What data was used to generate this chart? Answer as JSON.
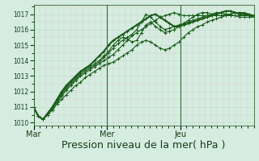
{
  "bg_color": "#d4ede0",
  "line_color": "#1a5c1a",
  "xlabel": "Pression niveau de la mer( hPa )",
  "xlabel_fontsize": 9,
  "yticks": [
    1010,
    1011,
    1012,
    1013,
    1014,
    1015,
    1016,
    1017
  ],
  "ylim": [
    1009.8,
    1017.6
  ],
  "xlim": [
    0,
    72
  ],
  "xtick_positions": [
    0,
    24,
    48
  ],
  "xtick_labels": [
    "Mar",
    "Mer",
    "Jeu"
  ],
  "vline_positions": [
    0,
    24,
    48
  ],
  "series": [
    [
      1011.0,
      1010.4,
      1010.2,
      1010.5,
      1010.8,
      1011.2,
      1011.5,
      1011.8,
      1012.1,
      1012.4,
      1012.6,
      1012.9,
      1013.1,
      1013.3,
      1013.5,
      1013.7,
      1013.8,
      1013.9,
      1014.1,
      1014.3,
      1014.5,
      1014.7,
      1015.0,
      1015.2,
      1015.3,
      1015.2,
      1015.0,
      1014.8,
      1014.7,
      1014.8,
      1015.0,
      1015.2,
      1015.5,
      1015.8,
      1016.0,
      1016.2,
      1016.3,
      1016.5,
      1016.6,
      1016.7,
      1016.8,
      1016.9,
      1017.0,
      1017.1,
      1017.1,
      1017.0,
      1017.0,
      1016.9
    ],
    [
      1011.0,
      1010.4,
      1010.2,
      1010.5,
      1010.9,
      1011.3,
      1011.7,
      1012.1,
      1012.4,
      1012.7,
      1013.0,
      1013.2,
      1013.4,
      1013.6,
      1013.8,
      1014.0,
      1014.2,
      1014.4,
      1014.7,
      1015.0,
      1015.3,
      1015.6,
      1015.8,
      1016.0,
      1016.2,
      1016.4,
      1016.6,
      1016.8,
      1016.9,
      1017.0,
      1017.1,
      1017.0,
      1016.9,
      1016.9,
      1016.9,
      1016.9,
      1016.9,
      1016.9,
      1016.9,
      1016.9,
      1016.9,
      1017.0,
      1017.0,
      1017.1,
      1017.1,
      1017.1,
      1017.0,
      1016.9
    ],
    [
      1011.0,
      1010.4,
      1010.2,
      1010.6,
      1011.0,
      1011.4,
      1011.8,
      1012.2,
      1012.5,
      1012.8,
      1013.1,
      1013.3,
      1013.5,
      1013.7,
      1013.9,
      1014.2,
      1014.5,
      1014.8,
      1015.1,
      1015.3,
      1015.5,
      1015.7,
      1016.0,
      1016.5,
      1017.0,
      1016.8,
      1016.5,
      1016.2,
      1016.0,
      1016.1,
      1016.2,
      1016.3,
      1016.4,
      1016.5,
      1016.6,
      1016.7,
      1016.8,
      1016.9,
      1017.0,
      1017.1,
      1017.1,
      1017.0,
      1016.9,
      1016.9,
      1016.8,
      1016.8,
      1016.8,
      1016.8
    ],
    [
      1011.0,
      1010.4,
      1010.2,
      1010.6,
      1011.0,
      1011.5,
      1011.9,
      1012.3,
      1012.6,
      1012.9,
      1013.2,
      1013.4,
      1013.6,
      1013.8,
      1014.0,
      1014.3,
      1014.6,
      1015.0,
      1015.3,
      1015.5,
      1015.4,
      1015.2,
      1015.3,
      1015.8,
      1016.3,
      1016.5,
      1016.2,
      1016.0,
      1015.8,
      1015.9,
      1016.0,
      1016.2,
      1016.4,
      1016.6,
      1016.8,
      1017.0,
      1017.1,
      1017.1,
      1017.0,
      1016.9,
      1016.9,
      1016.9,
      1016.9,
      1016.9,
      1016.9,
      1016.9,
      1016.9,
      1016.8
    ],
    [
      1011.0,
      1010.4,
      1010.2,
      1010.6,
      1011.0,
      1011.5,
      1012.0,
      1012.4,
      1012.7,
      1013.0,
      1013.3,
      1013.5,
      1013.7,
      1014.0,
      1014.3,
      1014.6,
      1015.0,
      1015.3,
      1015.5,
      1015.7,
      1015.9,
      1016.1,
      1016.3,
      1016.5,
      1016.7,
      1016.9,
      1017.0,
      1016.8,
      1016.6,
      1016.4,
      1016.2,
      1016.2,
      1016.3,
      1016.4,
      1016.5,
      1016.6,
      1016.7,
      1016.8,
      1016.9,
      1017.0,
      1017.1,
      1017.2,
      1017.2,
      1017.1,
      1017.0,
      1017.0,
      1016.9,
      1016.9
    ]
  ],
  "linewidths": [
    0.8,
    0.8,
    0.8,
    0.8,
    1.5
  ],
  "figsize": [
    3.2,
    2.0
  ],
  "dpi": 100
}
